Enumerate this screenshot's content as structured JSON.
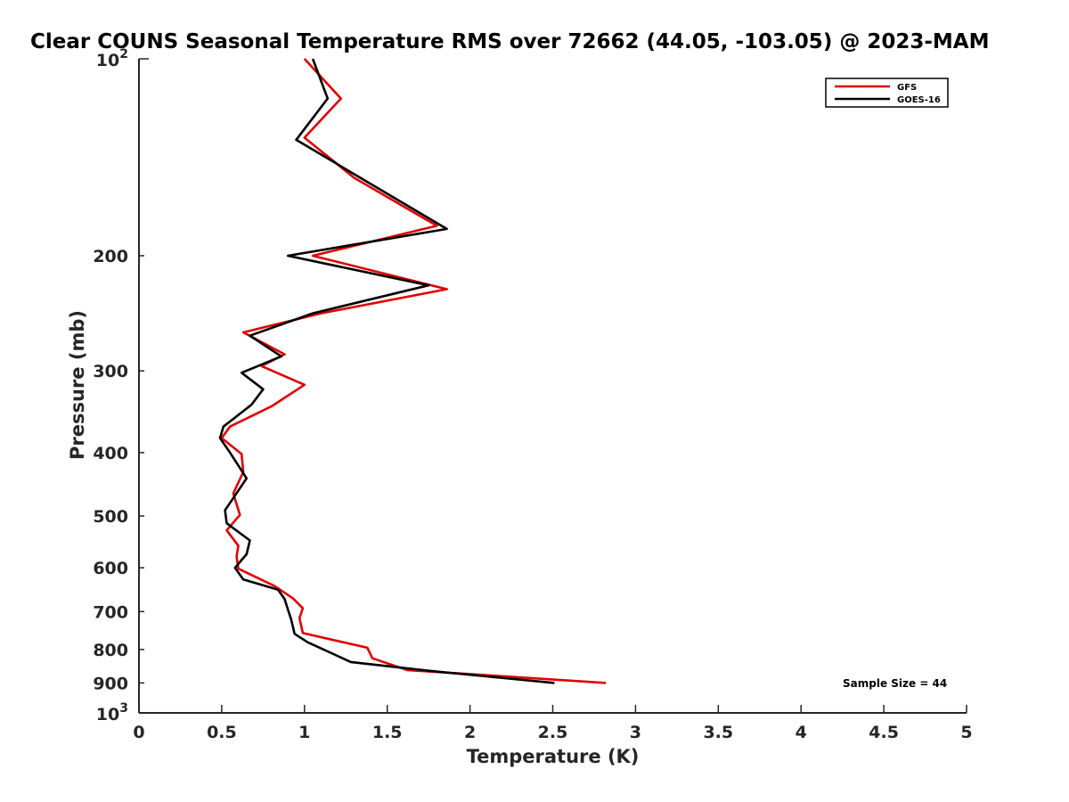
{
  "chart_data": {
    "type": "line",
    "title": "Clear COUNS Seasonal Temperature RMS over 72662 (44.05, -103.05) @ 2023-MAM",
    "xlabel": "Temperature (K)",
    "ylabel": "Pressure (mb)",
    "xlim": [
      0,
      5
    ],
    "ylim": [
      1000,
      100
    ],
    "yscale": "log",
    "yreversed": true,
    "x_ticks": [
      0,
      0.5,
      1,
      1.5,
      2,
      2.5,
      3,
      3.5,
      4,
      4.5,
      5
    ],
    "x_tick_labels": [
      "0",
      "0.5",
      "1",
      "1.5",
      "2",
      "2.5",
      "3",
      "3.5",
      "4",
      "4.5",
      "5"
    ],
    "y_ticks": [
      200,
      300,
      400,
      500,
      600,
      700,
      800,
      900
    ],
    "y_tick_labels": [
      "200",
      "300",
      "400",
      "500",
      "600",
      "700",
      "800",
      "900"
    ],
    "y_decade_labels": [
      {
        "value": 100,
        "base": "10",
        "exp": "2"
      },
      {
        "value": 1000,
        "base": "10",
        "exp": "3"
      }
    ],
    "grid": false,
    "legend_position": "top-right",
    "annotation": "Sample Size = 44",
    "series": [
      {
        "name": "GFS",
        "color": "#e00000",
        "points": [
          [
            1.0,
            100
          ],
          [
            1.22,
            115
          ],
          [
            1.0,
            132
          ],
          [
            1.3,
            152
          ],
          [
            1.8,
            180
          ],
          [
            1.05,
            200
          ],
          [
            1.86,
            225
          ],
          [
            1.1,
            245
          ],
          [
            0.63,
            262
          ],
          [
            0.88,
            283
          ],
          [
            0.74,
            295
          ],
          [
            1.0,
            315
          ],
          [
            0.8,
            340
          ],
          [
            0.55,
            365
          ],
          [
            0.5,
            380
          ],
          [
            0.62,
            402
          ],
          [
            0.63,
            428
          ],
          [
            0.57,
            462
          ],
          [
            0.61,
            498
          ],
          [
            0.53,
            526
          ],
          [
            0.6,
            555
          ],
          [
            0.59,
            577
          ],
          [
            0.6,
            602
          ],
          [
            0.82,
            640
          ],
          [
            0.93,
            668
          ],
          [
            0.99,
            692
          ],
          [
            0.97,
            716
          ],
          [
            0.99,
            755
          ],
          [
            1.38,
            795
          ],
          [
            1.41,
            825
          ],
          [
            1.62,
            860
          ],
          [
            2.82,
            900
          ]
        ]
      },
      {
        "name": "GOES-16",
        "color": "#000000",
        "points": [
          [
            1.05,
            100
          ],
          [
            1.14,
            115
          ],
          [
            0.95,
            133
          ],
          [
            1.86,
            182
          ],
          [
            0.9,
            200
          ],
          [
            1.75,
            222
          ],
          [
            1.05,
            245
          ],
          [
            0.67,
            265
          ],
          [
            0.86,
            285
          ],
          [
            0.62,
            302
          ],
          [
            0.75,
            320
          ],
          [
            0.68,
            338
          ],
          [
            0.51,
            365
          ],
          [
            0.49,
            380
          ],
          [
            0.55,
            400
          ],
          [
            0.65,
            438
          ],
          [
            0.52,
            490
          ],
          [
            0.53,
            513
          ],
          [
            0.67,
            545
          ],
          [
            0.65,
            572
          ],
          [
            0.58,
            600
          ],
          [
            0.63,
            625
          ],
          [
            0.84,
            648
          ],
          [
            0.88,
            670
          ],
          [
            0.9,
            695
          ],
          [
            0.92,
            720
          ],
          [
            0.94,
            757
          ],
          [
            1.02,
            780
          ],
          [
            1.28,
            836
          ],
          [
            1.75,
            862
          ],
          [
            2.51,
            900
          ]
        ]
      }
    ]
  }
}
